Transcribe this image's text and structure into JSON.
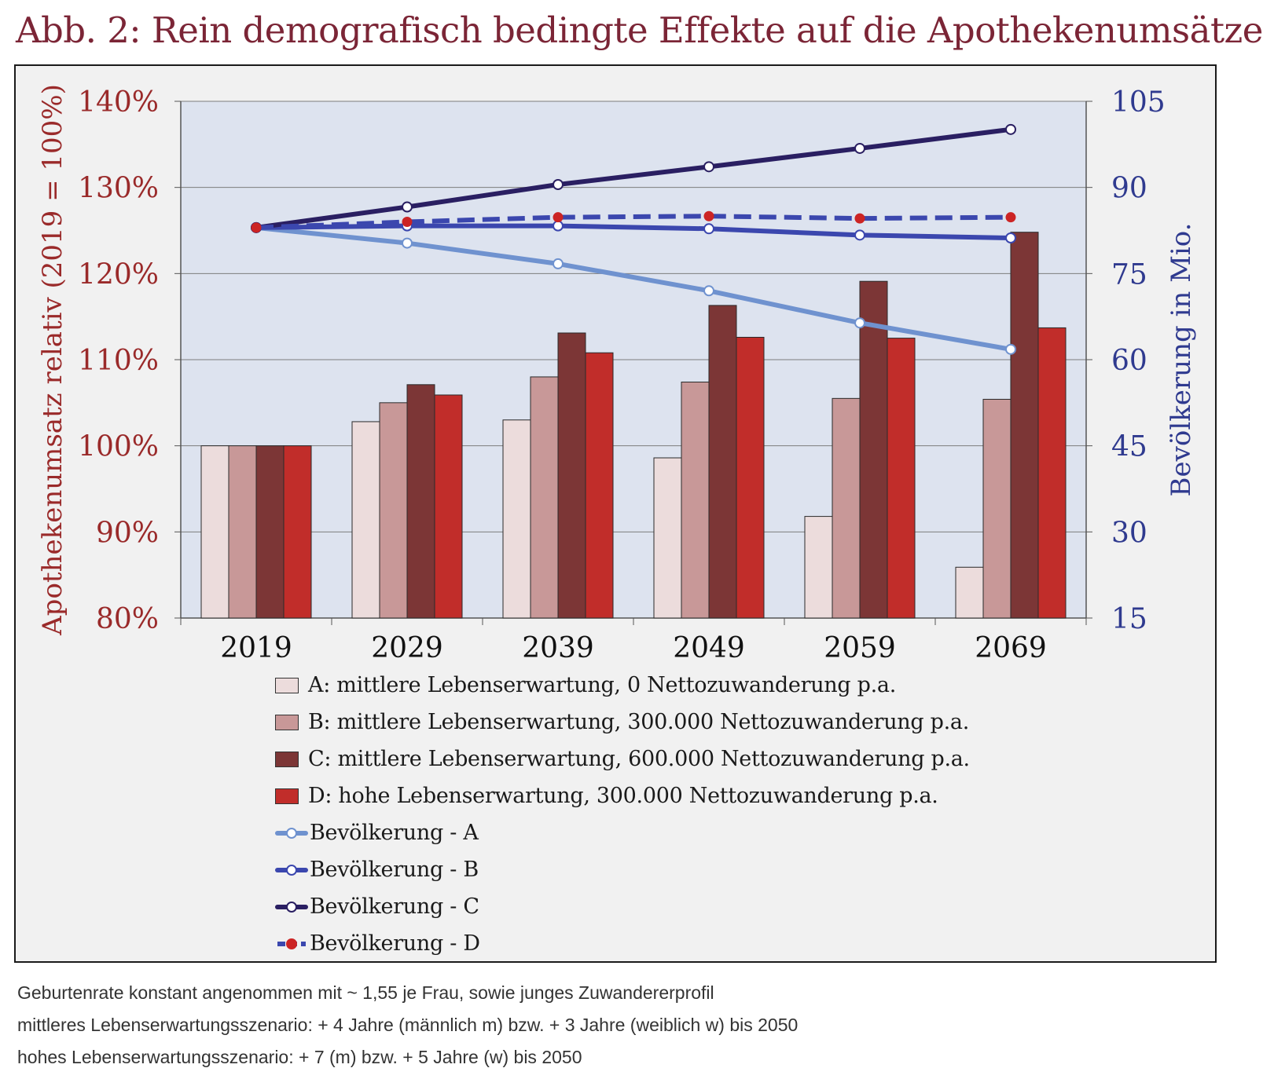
{
  "title": "Abb. 2: Rein demografisch bedingte Effekte auf die Apothekenumsätze",
  "colors": {
    "A": "#ecdcdc",
    "B": "#c89898",
    "C": "#7c3636",
    "D": "#c12d2a",
    "pop_A": "#6f92cf",
    "pop_B": "#3b47ae",
    "pop_C": "#2a1f62",
    "pop_D": "#3b47ae",
    "left_axis_text": "#9a2a2a",
    "right_axis_text": "#2f3a8f",
    "plot_bg": "#dde3ef"
  },
  "legend": [
    {
      "label": "A: mittlere Lebenserwartung, 0 Nettozuwanderung p.a.",
      "kind": "bar",
      "color_key": "A",
      "name": "legend-item-a"
    },
    {
      "label": "B: mittlere Lebenserwartung, 300.000 Nettozuwanderung p.a.",
      "kind": "bar",
      "color_key": "B",
      "name": "legend-item-b"
    },
    {
      "label": "C: mittlere Lebenserwartung, 600.000 Nettozuwanderung p.a.",
      "kind": "bar",
      "color_key": "C",
      "name": "legend-item-c"
    },
    {
      "label": "D: hohe Lebenserwartung, 300.000 Nettozuwanderung p.a.",
      "kind": "bar",
      "color_key": "D",
      "name": "legend-item-d"
    },
    {
      "label": "Bevölkerung - A",
      "kind": "line",
      "color_key": "pop_A",
      "marker": "white",
      "dashed": false,
      "name": "legend-item-pop-a"
    },
    {
      "label": "Bevölkerung - B",
      "kind": "line",
      "color_key": "pop_B",
      "marker": "white",
      "dashed": false,
      "name": "legend-item-pop-b"
    },
    {
      "label": "Bevölkerung - C",
      "kind": "line",
      "color_key": "pop_C",
      "marker": "white",
      "dashed": false,
      "name": "legend-item-pop-c"
    },
    {
      "label": "Bevölkerung - D",
      "kind": "line",
      "color_key": "pop_D",
      "marker": "red",
      "dashed": true,
      "name": "legend-item-pop-d"
    }
  ],
  "notes": [
    "Geburtenrate konstant angenommen mit ~ 1,55 je Frau, sowie junges Zuwandererprofil",
    "mittleres Lebenserwartungsszenario: + 4 Jahre (männlich m) bzw. + 3 Jahre (weiblich w) bis 2050",
    "hohes Lebenserwartungsszenario: + 7 (m) bzw. + 5 Jahre (w) bis 2050"
  ],
  "chart_data": {
    "type": "bar",
    "categories": [
      "2019",
      "2029",
      "2039",
      "2049",
      "2059",
      "2069"
    ],
    "ylabel": "Apothekenumsatz relativ (2019 = 100%)",
    "y2label": "Bevölkerung in Mio.",
    "ylim": [
      80,
      140
    ],
    "y2lim": [
      15,
      105
    ],
    "yticks": [
      "80%",
      "90%",
      "100%",
      "110%",
      "120%",
      "130%",
      "140%"
    ],
    "yticks_values": [
      80,
      90,
      100,
      110,
      120,
      130,
      140
    ],
    "y2ticks": [
      "15",
      "30",
      "45",
      "60",
      "75",
      "90",
      "105"
    ],
    "y2ticks_values": [
      15,
      30,
      45,
      60,
      75,
      90,
      105
    ],
    "grid": true,
    "legend_position": "below",
    "series": [
      {
        "name": "A: mittlere Lebenserwartung, 0 Nettozuwanderung p.a.",
        "key": "A",
        "values": [
          100,
          102.8,
          103,
          98.6,
          91.8,
          85.9
        ]
      },
      {
        "name": "B: mittlere Lebenserwartung, 300.000 Nettozuwanderung p.a.",
        "key": "B",
        "values": [
          100,
          105,
          108,
          107.4,
          105.5,
          105.4
        ]
      },
      {
        "name": "C: mittlere Lebenserwartung, 600.000 Nettozuwanderung p.a.",
        "key": "C",
        "values": [
          100,
          107.1,
          113.1,
          116.3,
          119.1,
          124.8
        ]
      },
      {
        "name": "D: hohe Lebenserwartung, 300.000 Nettozuwanderung p.a.",
        "key": "D",
        "values": [
          100,
          105.9,
          110.8,
          112.6,
          112.5,
          113.7
        ]
      }
    ],
    "line_series": [
      {
        "name": "Bevölkerung - A",
        "key": "pop_A",
        "axis": "right",
        "values": [
          83.0,
          80.3,
          76.7,
          72.0,
          66.4,
          61.8
        ]
      },
      {
        "name": "Bevölkerung - B",
        "key": "pop_B",
        "axis": "right",
        "values": [
          83.0,
          83.3,
          83.3,
          82.8,
          81.7,
          81.2
        ]
      },
      {
        "name": "Bevölkerung - C",
        "key": "pop_C",
        "axis": "right",
        "values": [
          83.0,
          86.6,
          90.5,
          93.6,
          96.8,
          100.1
        ]
      },
      {
        "name": "Bevölkerung - D",
        "key": "pop_D",
        "axis": "right",
        "dashed": true,
        "values": [
          83.0,
          84.0,
          84.8,
          85.0,
          84.6,
          84.8
        ]
      }
    ]
  }
}
